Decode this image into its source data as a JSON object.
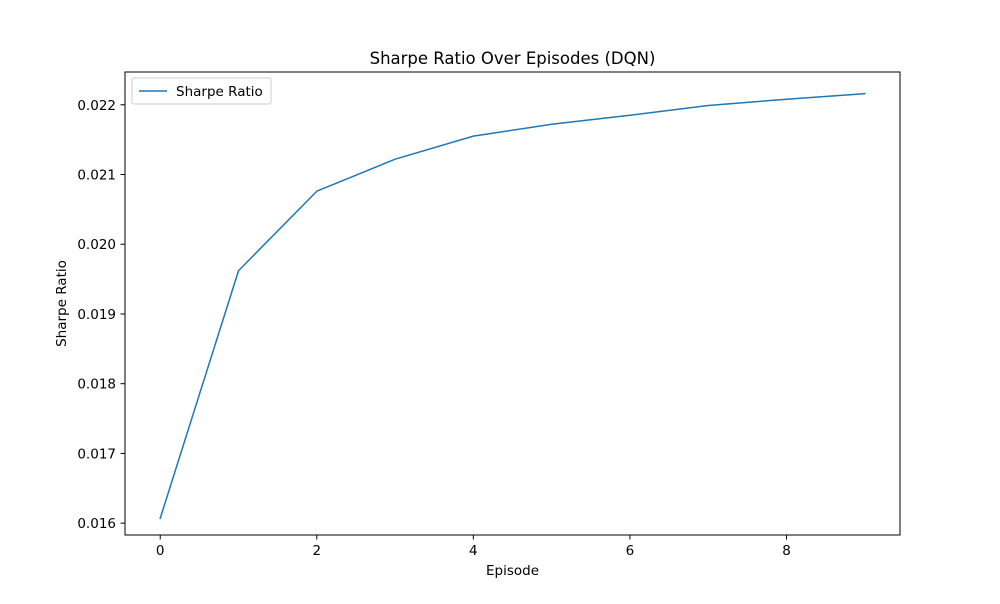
{
  "chart_data": {
    "type": "line",
    "title": "Sharpe Ratio Over Episodes (DQN)",
    "xlabel": "Episode",
    "ylabel": "Sharpe Ratio",
    "xlim": [
      -0.45,
      9.45
    ],
    "ylim": [
      0.01583,
      0.02247
    ],
    "xticks": [
      0,
      2,
      4,
      6,
      8
    ],
    "yticks": [
      0.016,
      0.017,
      0.018,
      0.019,
      0.02,
      0.021,
      0.022
    ],
    "xtick_labels": [
      "0",
      "2",
      "4",
      "6",
      "8"
    ],
    "ytick_labels": [
      "0.016",
      "0.017",
      "0.018",
      "0.019",
      "0.020",
      "0.021",
      "0.022"
    ],
    "grid": false,
    "legend_position": "upper-left",
    "series": [
      {
        "name": "Sharpe Ratio",
        "color": "#1f77b4",
        "x": [
          0,
          1,
          2,
          3,
          4,
          5,
          6,
          7,
          8,
          9
        ],
        "y": [
          0.01607,
          0.01962,
          0.02076,
          0.02122,
          0.02155,
          0.02172,
          0.02185,
          0.02199,
          0.02208,
          0.02216
        ]
      }
    ]
  }
}
